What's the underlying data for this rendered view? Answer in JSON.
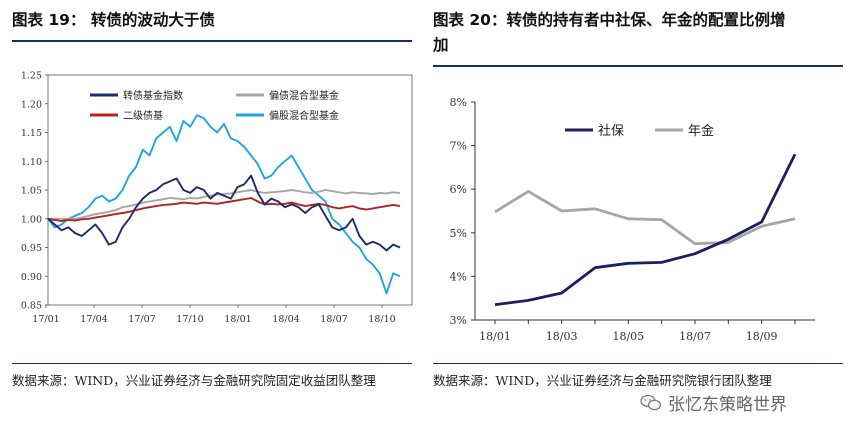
{
  "left": {
    "title": "图表 19：  转债的波动大于债",
    "source": "数据来源：WIND，兴业证券经济与金融研究院固定收益团队整理",
    "chart_data": {
      "type": "line",
      "title": "转债的波动大于债",
      "x_ticks": [
        "17/01",
        "17/04",
        "17/07",
        "17/10",
        "18/01",
        "18/04",
        "18/07",
        "18/10"
      ],
      "y_ticks": [
        "0.85",
        "0.90",
        "0.95",
        "1.00",
        "1.05",
        "1.10",
        "1.15",
        "1.20",
        "1.25"
      ],
      "ylim": [
        0.85,
        1.25
      ],
      "legend_position": "top",
      "series": [
        {
          "name": "转债基金指数",
          "color": "#1f2a6b",
          "values": [
            1.0,
            0.99,
            0.98,
            0.985,
            0.975,
            0.97,
            0.98,
            0.99,
            0.975,
            0.955,
            0.96,
            0.985,
            1.0,
            1.02,
            1.035,
            1.045,
            1.05,
            1.06,
            1.065,
            1.07,
            1.05,
            1.045,
            1.055,
            1.05,
            1.035,
            1.045,
            1.04,
            1.035,
            1.055,
            1.06,
            1.075,
            1.045,
            1.025,
            1.035,
            1.03,
            1.02,
            1.025,
            1.02,
            1.01,
            1.02,
            1.025,
            1.005,
            0.985,
            0.98,
            0.985,
            1.0,
            0.97,
            0.955,
            0.96,
            0.955,
            0.945,
            0.955,
            0.95
          ]
        },
        {
          "name": "偏债混合型基金",
          "color": "#a6a6a6",
          "values": [
            1.0,
            1.0,
            1.0,
            1.0,
            1.0,
            1.002,
            1.005,
            1.008,
            1.01,
            1.012,
            1.015,
            1.02,
            1.022,
            1.025,
            1.028,
            1.03,
            1.032,
            1.034,
            1.036,
            1.035,
            1.034,
            1.036,
            1.035,
            1.038,
            1.04,
            1.042,
            1.043,
            1.044,
            1.046,
            1.048,
            1.05,
            1.047,
            1.045,
            1.046,
            1.047,
            1.048,
            1.05,
            1.048,
            1.046,
            1.045,
            1.047,
            1.05,
            1.048,
            1.046,
            1.044,
            1.046,
            1.045,
            1.044,
            1.043,
            1.045,
            1.044,
            1.046,
            1.045
          ]
        },
        {
          "name": "二级债基",
          "color": "#b22222",
          "values": [
            1.0,
            0.998,
            0.996,
            0.998,
            0.997,
            0.999,
            1.0,
            1.002,
            1.004,
            1.006,
            1.008,
            1.01,
            1.012,
            1.015,
            1.018,
            1.02,
            1.022,
            1.024,
            1.025,
            1.026,
            1.028,
            1.027,
            1.026,
            1.028,
            1.027,
            1.026,
            1.028,
            1.03,
            1.032,
            1.034,
            1.036,
            1.03,
            1.025,
            1.026,
            1.025,
            1.026,
            1.028,
            1.025,
            1.022,
            1.024,
            1.026,
            1.024,
            1.02,
            1.018,
            1.02,
            1.022,
            1.018,
            1.016,
            1.018,
            1.02,
            1.022,
            1.024,
            1.022
          ]
        },
        {
          "name": "偏股混合型基金",
          "color": "#1ea6e0",
          "values": [
            1.0,
            0.985,
            0.99,
            1.0,
            1.005,
            1.01,
            1.02,
            1.035,
            1.04,
            1.03,
            1.035,
            1.05,
            1.075,
            1.09,
            1.12,
            1.11,
            1.14,
            1.15,
            1.16,
            1.135,
            1.17,
            1.16,
            1.18,
            1.175,
            1.16,
            1.15,
            1.165,
            1.14,
            1.135,
            1.125,
            1.11,
            1.095,
            1.07,
            1.075,
            1.09,
            1.1,
            1.11,
            1.09,
            1.07,
            1.05,
            1.04,
            1.03,
            1.0,
            0.99,
            0.975,
            0.96,
            0.95,
            0.93,
            0.92,
            0.905,
            0.87,
            0.905,
            0.9
          ]
        }
      ]
    }
  },
  "right": {
    "title_line1": "图表 20：转债的持有者中社保、年金的配置比例增",
    "title_line2": "加",
    "source": "数据来源：WIND，兴业证券经济与金融研究院银行团队整理",
    "chart_data": {
      "type": "line",
      "title": "转债的持有者中社保、年金的配置比例增加",
      "categories": [
        "18/01",
        "18/02",
        "18/03",
        "18/04",
        "18/05",
        "18/06",
        "18/07",
        "18/08",
        "18/09",
        "18/10"
      ],
      "x_tick_labels": [
        "18/01",
        "",
        "18/03",
        "",
        "18/05",
        "",
        "18/07",
        "",
        "18/09",
        ""
      ],
      "y_ticks": [
        "3%",
        "4%",
        "5%",
        "6%",
        "7%",
        "8%"
      ],
      "ylim": [
        3,
        8
      ],
      "legend_position": "top-left",
      "series": [
        {
          "name": "社保",
          "color": "#1a1f5e",
          "values": [
            3.35,
            3.45,
            3.62,
            4.2,
            4.3,
            4.32,
            4.52,
            4.85,
            5.25,
            6.8
          ]
        },
        {
          "name": "年金",
          "color": "#a6a6a6",
          "values": [
            5.48,
            5.95,
            5.5,
            5.55,
            5.32,
            5.3,
            4.75,
            4.78,
            5.15,
            5.32
          ]
        }
      ]
    }
  },
  "watermark": {
    "text": "张忆东策略世界",
    "icon": "wechat-icon"
  }
}
